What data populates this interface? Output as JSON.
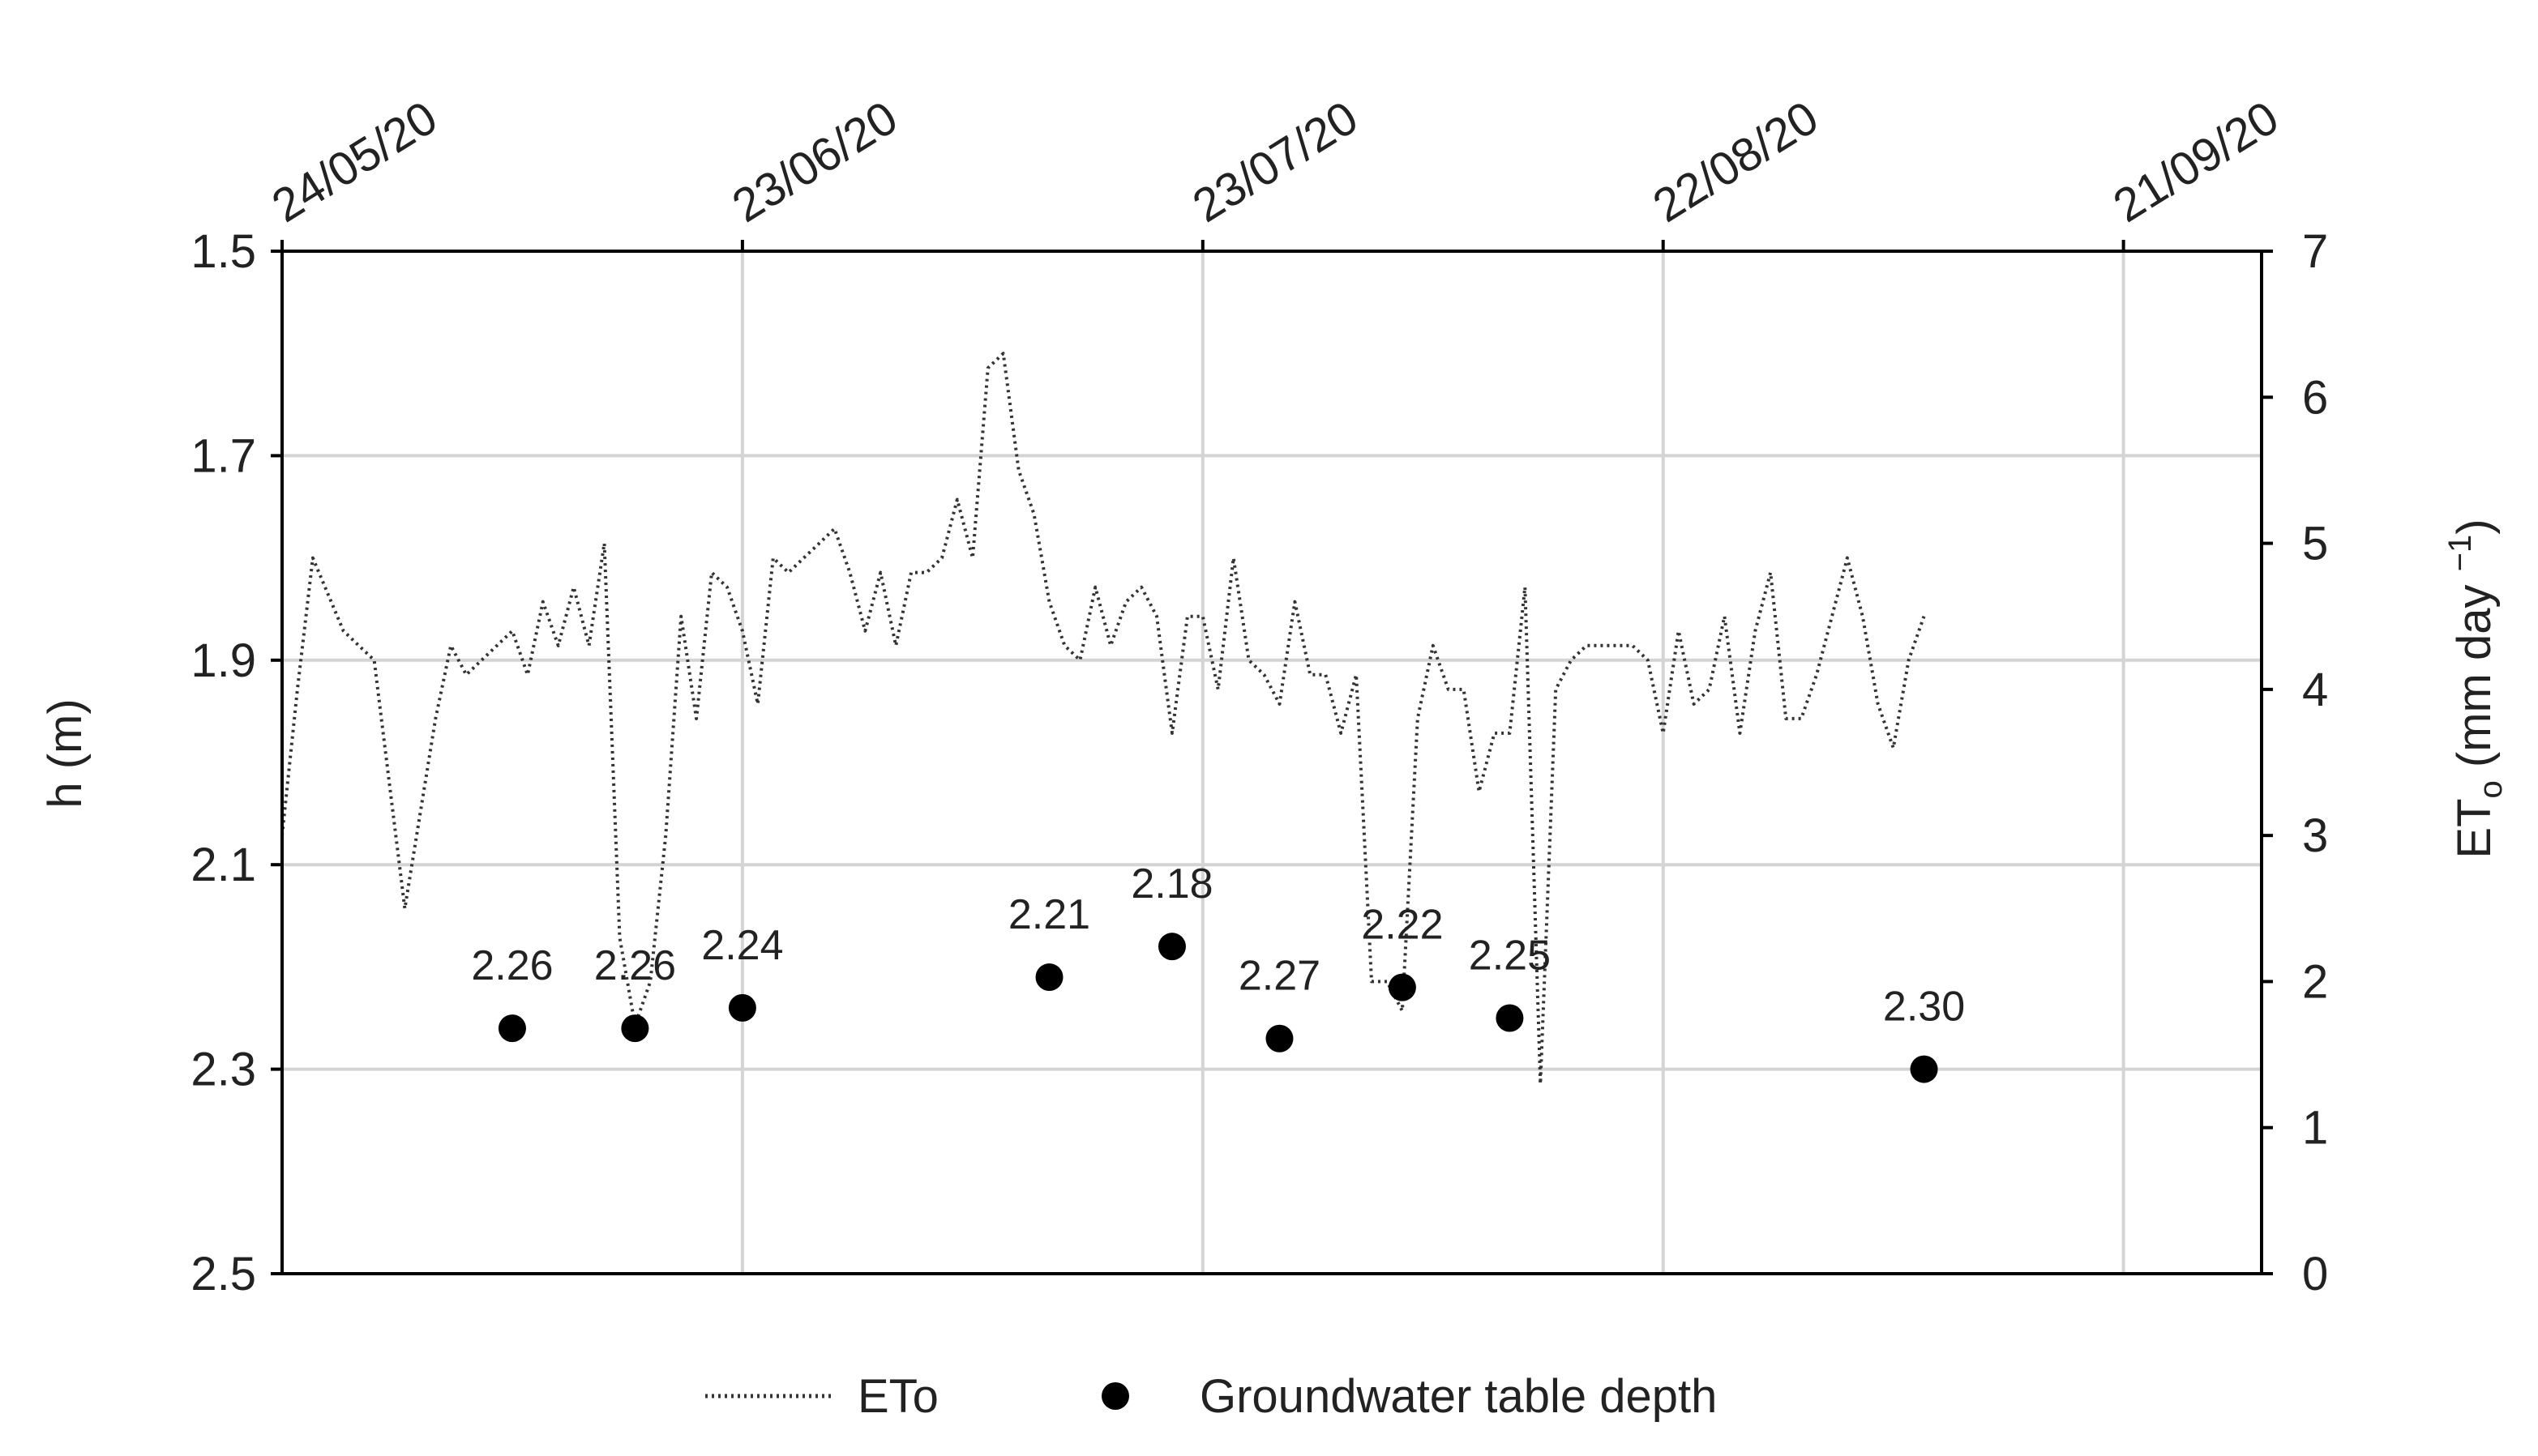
{
  "chart_data": {
    "type": "scatter",
    "x_type": "date",
    "x_tick_labels": [
      "24/05/20",
      "23/06/20",
      "23/07/20",
      "22/08/20",
      "21/09/20"
    ],
    "x_ticks": [
      "2020-05-24",
      "2020-06-23",
      "2020-07-23",
      "2020-08-22",
      "2020-09-21"
    ],
    "x_range": [
      "2020-05-24",
      "2020-09-30"
    ],
    "x_axis_position": "top",
    "y_left": {
      "label": "h (m)",
      "range": [
        1.5,
        2.5
      ],
      "inverted": true,
      "ticks": [
        "1.5",
        "1.7",
        "1.9",
        "2.1",
        "2.3",
        "2.5"
      ]
    },
    "y_right": {
      "label_main": "ET",
      "label_sub": "o",
      "label_units": " (mm day ",
      "label_exp": "−1",
      "label_end": ")",
      "range": [
        0,
        7
      ],
      "ticks": [
        "0",
        "1",
        "2",
        "3",
        "4",
        "5",
        "6",
        "7"
      ]
    },
    "grid": true,
    "legend_position": "bottom",
    "series": [
      {
        "name": "ETo",
        "style": "dotted-line",
        "axis": "right",
        "color": "#333333",
        "points": [
          [
            "2020-05-24",
            3.0
          ],
          [
            "2020-05-25",
            4.0
          ],
          [
            "2020-05-26",
            4.9
          ],
          [
            "2020-05-28",
            4.4
          ],
          [
            "2020-05-30",
            4.2
          ],
          [
            "2020-06-01",
            2.5
          ],
          [
            "2020-06-03",
            3.8
          ],
          [
            "2020-06-04",
            4.3
          ],
          [
            "2020-06-05",
            4.1
          ],
          [
            "2020-06-06",
            4.2
          ],
          [
            "2020-06-07",
            4.3
          ],
          [
            "2020-06-08",
            4.4
          ],
          [
            "2020-06-09",
            4.1
          ],
          [
            "2020-06-10",
            4.6
          ],
          [
            "2020-06-11",
            4.3
          ],
          [
            "2020-06-12",
            4.7
          ],
          [
            "2020-06-13",
            4.3
          ],
          [
            "2020-06-14",
            5.0
          ],
          [
            "2020-06-15",
            2.3
          ],
          [
            "2020-06-16",
            1.7
          ],
          [
            "2020-06-17",
            2.0
          ],
          [
            "2020-06-18",
            3.0
          ],
          [
            "2020-06-19",
            4.5
          ],
          [
            "2020-06-20",
            3.8
          ],
          [
            "2020-06-21",
            4.8
          ],
          [
            "2020-06-22",
            4.7
          ],
          [
            "2020-06-23",
            4.4
          ],
          [
            "2020-06-24",
            3.9
          ],
          [
            "2020-06-25",
            4.9
          ],
          [
            "2020-06-26",
            4.8
          ],
          [
            "2020-06-27",
            4.9
          ],
          [
            "2020-06-28",
            5.0
          ],
          [
            "2020-06-29",
            5.1
          ],
          [
            "2020-06-30",
            4.8
          ],
          [
            "2020-07-01",
            4.4
          ],
          [
            "2020-07-02",
            4.8
          ],
          [
            "2020-07-03",
            4.3
          ],
          [
            "2020-07-04",
            4.8
          ],
          [
            "2020-07-05",
            4.8
          ],
          [
            "2020-07-06",
            4.9
          ],
          [
            "2020-07-07",
            5.3
          ],
          [
            "2020-07-08",
            4.9
          ],
          [
            "2020-07-09",
            6.2
          ],
          [
            "2020-07-10",
            6.3
          ],
          [
            "2020-07-11",
            5.5
          ],
          [
            "2020-07-12",
            5.2
          ],
          [
            "2020-07-13",
            4.6
          ],
          [
            "2020-07-14",
            4.3
          ],
          [
            "2020-07-15",
            4.2
          ],
          [
            "2020-07-16",
            4.7
          ],
          [
            "2020-07-17",
            4.3
          ],
          [
            "2020-07-18",
            4.6
          ],
          [
            "2020-07-19",
            4.7
          ],
          [
            "2020-07-20",
            4.5
          ],
          [
            "2020-07-21",
            3.7
          ],
          [
            "2020-07-22",
            4.5
          ],
          [
            "2020-07-23",
            4.5
          ],
          [
            "2020-07-24",
            4.0
          ],
          [
            "2020-07-25",
            4.9
          ],
          [
            "2020-07-26",
            4.2
          ],
          [
            "2020-07-27",
            4.1
          ],
          [
            "2020-07-28",
            3.9
          ],
          [
            "2020-07-29",
            4.6
          ],
          [
            "2020-07-30",
            4.1
          ],
          [
            "2020-07-31",
            4.1
          ],
          [
            "2020-08-01",
            3.7
          ],
          [
            "2020-08-02",
            4.1
          ],
          [
            "2020-08-03",
            2.0
          ],
          [
            "2020-08-04",
            2.0
          ],
          [
            "2020-08-05",
            1.8
          ],
          [
            "2020-08-06",
            3.8
          ],
          [
            "2020-08-07",
            4.3
          ],
          [
            "2020-08-08",
            4.0
          ],
          [
            "2020-08-09",
            4.0
          ],
          [
            "2020-08-10",
            3.3
          ],
          [
            "2020-08-11",
            3.7
          ],
          [
            "2020-08-12",
            3.7
          ],
          [
            "2020-08-13",
            4.7
          ],
          [
            "2020-08-14",
            1.3
          ],
          [
            "2020-08-15",
            4.0
          ],
          [
            "2020-08-16",
            4.2
          ],
          [
            "2020-08-17",
            4.3
          ],
          [
            "2020-08-18",
            4.3
          ],
          [
            "2020-08-19",
            4.3
          ],
          [
            "2020-08-20",
            4.3
          ],
          [
            "2020-08-21",
            4.2
          ],
          [
            "2020-08-22",
            3.7
          ],
          [
            "2020-08-23",
            4.4
          ],
          [
            "2020-08-24",
            3.9
          ],
          [
            "2020-08-25",
            4.0
          ],
          [
            "2020-08-26",
            4.5
          ],
          [
            "2020-08-27",
            3.7
          ],
          [
            "2020-08-28",
            4.4
          ],
          [
            "2020-08-29",
            4.8
          ],
          [
            "2020-08-30",
            3.8
          ],
          [
            "2020-08-31",
            3.8
          ],
          [
            "2020-09-01",
            4.1
          ],
          [
            "2020-09-02",
            4.5
          ],
          [
            "2020-09-03",
            4.9
          ],
          [
            "2020-09-04",
            4.5
          ],
          [
            "2020-09-05",
            3.9
          ],
          [
            "2020-09-06",
            3.6
          ],
          [
            "2020-09-07",
            4.2
          ],
          [
            "2020-09-08",
            4.5
          ]
        ]
      },
      {
        "name": "Groundwater table depth",
        "style": "markers",
        "axis": "left",
        "color": "#000000",
        "points": [
          [
            "2020-06-08",
            2.26
          ],
          [
            "2020-06-16",
            2.26
          ],
          [
            "2020-06-23",
            2.24
          ],
          [
            "2020-07-13",
            2.21
          ],
          [
            "2020-07-21",
            2.18
          ],
          [
            "2020-07-28",
            2.27
          ],
          [
            "2020-08-05",
            2.22
          ],
          [
            "2020-08-12",
            2.25
          ],
          [
            "2020-09-08",
            2.3
          ]
        ],
        "labels": [
          "2.26",
          "2.26",
          "2.24",
          "2.21",
          "2.18",
          "2.27",
          "2.22",
          "2.25",
          "2.30"
        ]
      }
    ]
  }
}
